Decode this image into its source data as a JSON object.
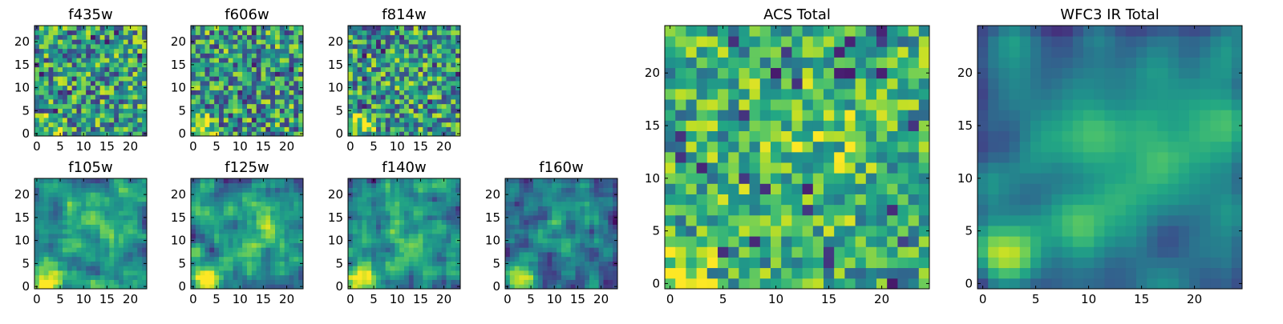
{
  "colormap": "viridis",
  "colors": {
    "axes_edge": "#000000",
    "background": "#ffffff"
  },
  "chart_data": [
    {
      "type": "heatmap",
      "title": "f435w",
      "cmap": "viridis",
      "rows": 24,
      "cols": 24,
      "xlim": [
        -0.5,
        23.5
      ],
      "ylim": [
        -0.5,
        23.5
      ],
      "xticks": [
        0,
        5,
        10,
        15,
        20
      ],
      "yticks": [
        0,
        5,
        10,
        15,
        20
      ],
      "profile": "noise_low",
      "seed": 11
    },
    {
      "type": "heatmap",
      "title": "f606w",
      "cmap": "viridis",
      "rows": 24,
      "cols": 24,
      "xlim": [
        -0.5,
        23.5
      ],
      "ylim": [
        -0.5,
        23.5
      ],
      "xticks": [
        0,
        5,
        10,
        15,
        20
      ],
      "yticks": [
        0,
        5,
        10,
        15,
        20
      ],
      "profile": "noise_low",
      "seed": 23
    },
    {
      "type": "heatmap",
      "title": "f814w",
      "cmap": "viridis",
      "rows": 24,
      "cols": 24,
      "xlim": [
        -0.5,
        23.5
      ],
      "ylim": [
        -0.5,
        23.5
      ],
      "xticks": [
        0,
        5,
        10,
        15,
        20
      ],
      "yticks": [
        0,
        5,
        10,
        15,
        20
      ],
      "profile": "noise_low",
      "seed": 37
    },
    {
      "type": "heatmap",
      "title": "f105w",
      "cmap": "viridis",
      "rows": 24,
      "cols": 24,
      "xlim": [
        -0.5,
        23.5
      ],
      "ylim": [
        -0.5,
        23.5
      ],
      "xticks": [
        0,
        5,
        10,
        15,
        20
      ],
      "yticks": [
        0,
        5,
        10,
        15,
        20
      ],
      "profile": "smooth",
      "seed": 41
    },
    {
      "type": "heatmap",
      "title": "f125w",
      "cmap": "viridis",
      "rows": 24,
      "cols": 24,
      "xlim": [
        -0.5,
        23.5
      ],
      "ylim": [
        -0.5,
        23.5
      ],
      "xticks": [
        0,
        5,
        10,
        15,
        20
      ],
      "yticks": [
        0,
        5,
        10,
        15,
        20
      ],
      "profile": "smooth",
      "seed": 53
    },
    {
      "type": "heatmap",
      "title": "f140w",
      "cmap": "viridis",
      "rows": 24,
      "cols": 24,
      "xlim": [
        -0.5,
        23.5
      ],
      "ylim": [
        -0.5,
        23.5
      ],
      "xticks": [
        0,
        5,
        10,
        15,
        20
      ],
      "yticks": [
        0,
        5,
        10,
        15,
        20
      ],
      "profile": "smooth",
      "seed": 67
    },
    {
      "type": "heatmap",
      "title": "f160w",
      "cmap": "viridis",
      "rows": 24,
      "cols": 24,
      "xlim": [
        -0.5,
        23.5
      ],
      "ylim": [
        -0.5,
        23.5
      ],
      "xticks": [
        0,
        5,
        10,
        15,
        20
      ],
      "yticks": [
        0,
        5,
        10,
        15,
        20
      ],
      "profile": "smooth_dark",
      "seed": 79
    },
    {
      "type": "heatmap",
      "title": "ACS Total",
      "cmap": "viridis",
      "rows": 25,
      "cols": 25,
      "xlim": [
        -0.5,
        24.5
      ],
      "ylim": [
        -0.5,
        24.5
      ],
      "xticks": [
        0,
        5,
        10,
        15,
        20
      ],
      "yticks": [
        0,
        5,
        10,
        15,
        20
      ],
      "profile": "noise_total",
      "seed": 83
    },
    {
      "type": "heatmap",
      "title": "WFC3 IR Total",
      "cmap": "viridis",
      "rows": 25,
      "cols": 25,
      "xlim": [
        -0.5,
        24.5
      ],
      "ylim": [
        -0.5,
        24.5
      ],
      "xticks": [
        0,
        5,
        10,
        15,
        20
      ],
      "yticks": [
        0,
        5,
        10,
        15,
        20
      ],
      "profile": "smooth_total",
      "seed": 97
    }
  ]
}
